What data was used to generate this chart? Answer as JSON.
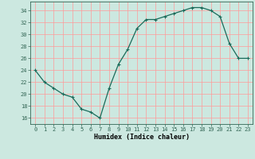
{
  "x": [
    0,
    1,
    2,
    3,
    4,
    5,
    6,
    7,
    8,
    9,
    10,
    11,
    12,
    13,
    14,
    15,
    16,
    17,
    18,
    19,
    20,
    21,
    22,
    23
  ],
  "y": [
    24.0,
    22.0,
    21.0,
    20.0,
    19.5,
    17.5,
    17.0,
    16.0,
    21.0,
    25.0,
    27.5,
    31.0,
    32.5,
    32.5,
    33.0,
    33.5,
    34.0,
    34.5,
    34.5,
    34.0,
    33.0,
    28.5,
    26.0,
    26.0
  ],
  "line_color": "#1a6b5a",
  "marker": "+",
  "marker_size": 3,
  "marker_lw": 0.8,
  "line_width": 0.9,
  "bg_color": "#cce8e0",
  "grid_color": "#ff9999",
  "xlabel": "Humidex (Indice chaleur)",
  "xlim": [
    -0.5,
    23.5
  ],
  "ylim": [
    15.0,
    35.5
  ],
  "yticks": [
    16,
    18,
    20,
    22,
    24,
    26,
    28,
    30,
    32,
    34
  ],
  "xtick_labels": [
    "0",
    "1",
    "2",
    "3",
    "4",
    "5",
    "6",
    "7",
    "8",
    "9",
    "10",
    "11",
    "12",
    "13",
    "14",
    "15",
    "16",
    "17",
    "18",
    "19",
    "20",
    "21",
    "22",
    "23"
  ],
  "tick_fontsize": 5,
  "xlabel_fontsize": 6,
  "xlabel_fontweight": "bold"
}
